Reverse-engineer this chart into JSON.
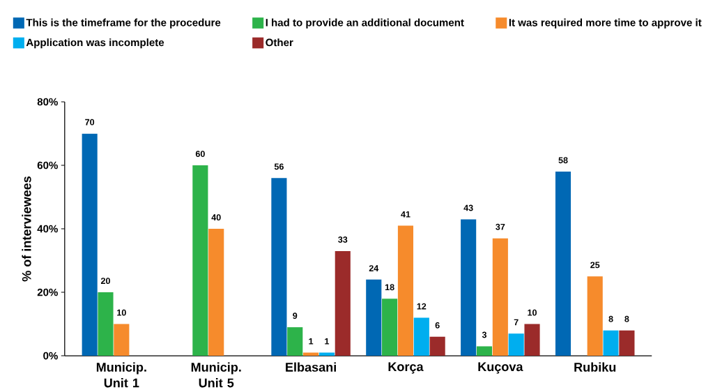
{
  "chart_data": {
    "type": "bar",
    "ylabel": "% of interviewees",
    "categories": [
      "Municip. Unit 1",
      "Municip. Unit 5",
      "Elbasani",
      "Korça",
      "Kuçova",
      "Rubiku"
    ],
    "series": [
      {
        "name": "This is the timeframe for the procedure",
        "color": "#0068b4",
        "values": [
          70,
          null,
          56,
          24,
          43,
          58
        ]
      },
      {
        "name": "I had to provide an additional document",
        "color": "#2db34a",
        "values": [
          20,
          60,
          9,
          18,
          3,
          null
        ]
      },
      {
        "name": "It was required more time to approve it",
        "color": "#f68b2c",
        "values": [
          10,
          40,
          1,
          41,
          37,
          25
        ]
      },
      {
        "name": "Application was incomplete",
        "color": "#00aeef",
        "values": [
          null,
          null,
          1,
          12,
          7,
          8
        ]
      },
      {
        "name": "Other",
        "color": "#9b2b2a",
        "values": [
          null,
          null,
          33,
          6,
          10,
          8
        ]
      }
    ],
    "ylim": [
      0,
      80
    ],
    "yticks": [
      {
        "value": 0,
        "label": "0%"
      },
      {
        "value": 20,
        "label": "20%"
      },
      {
        "value": 40,
        "label": "40%"
      },
      {
        "value": 60,
        "label": "60%"
      },
      {
        "value": 80,
        "label": "80%"
      }
    ],
    "data_labels": true,
    "legend": "top",
    "grid": false
  }
}
